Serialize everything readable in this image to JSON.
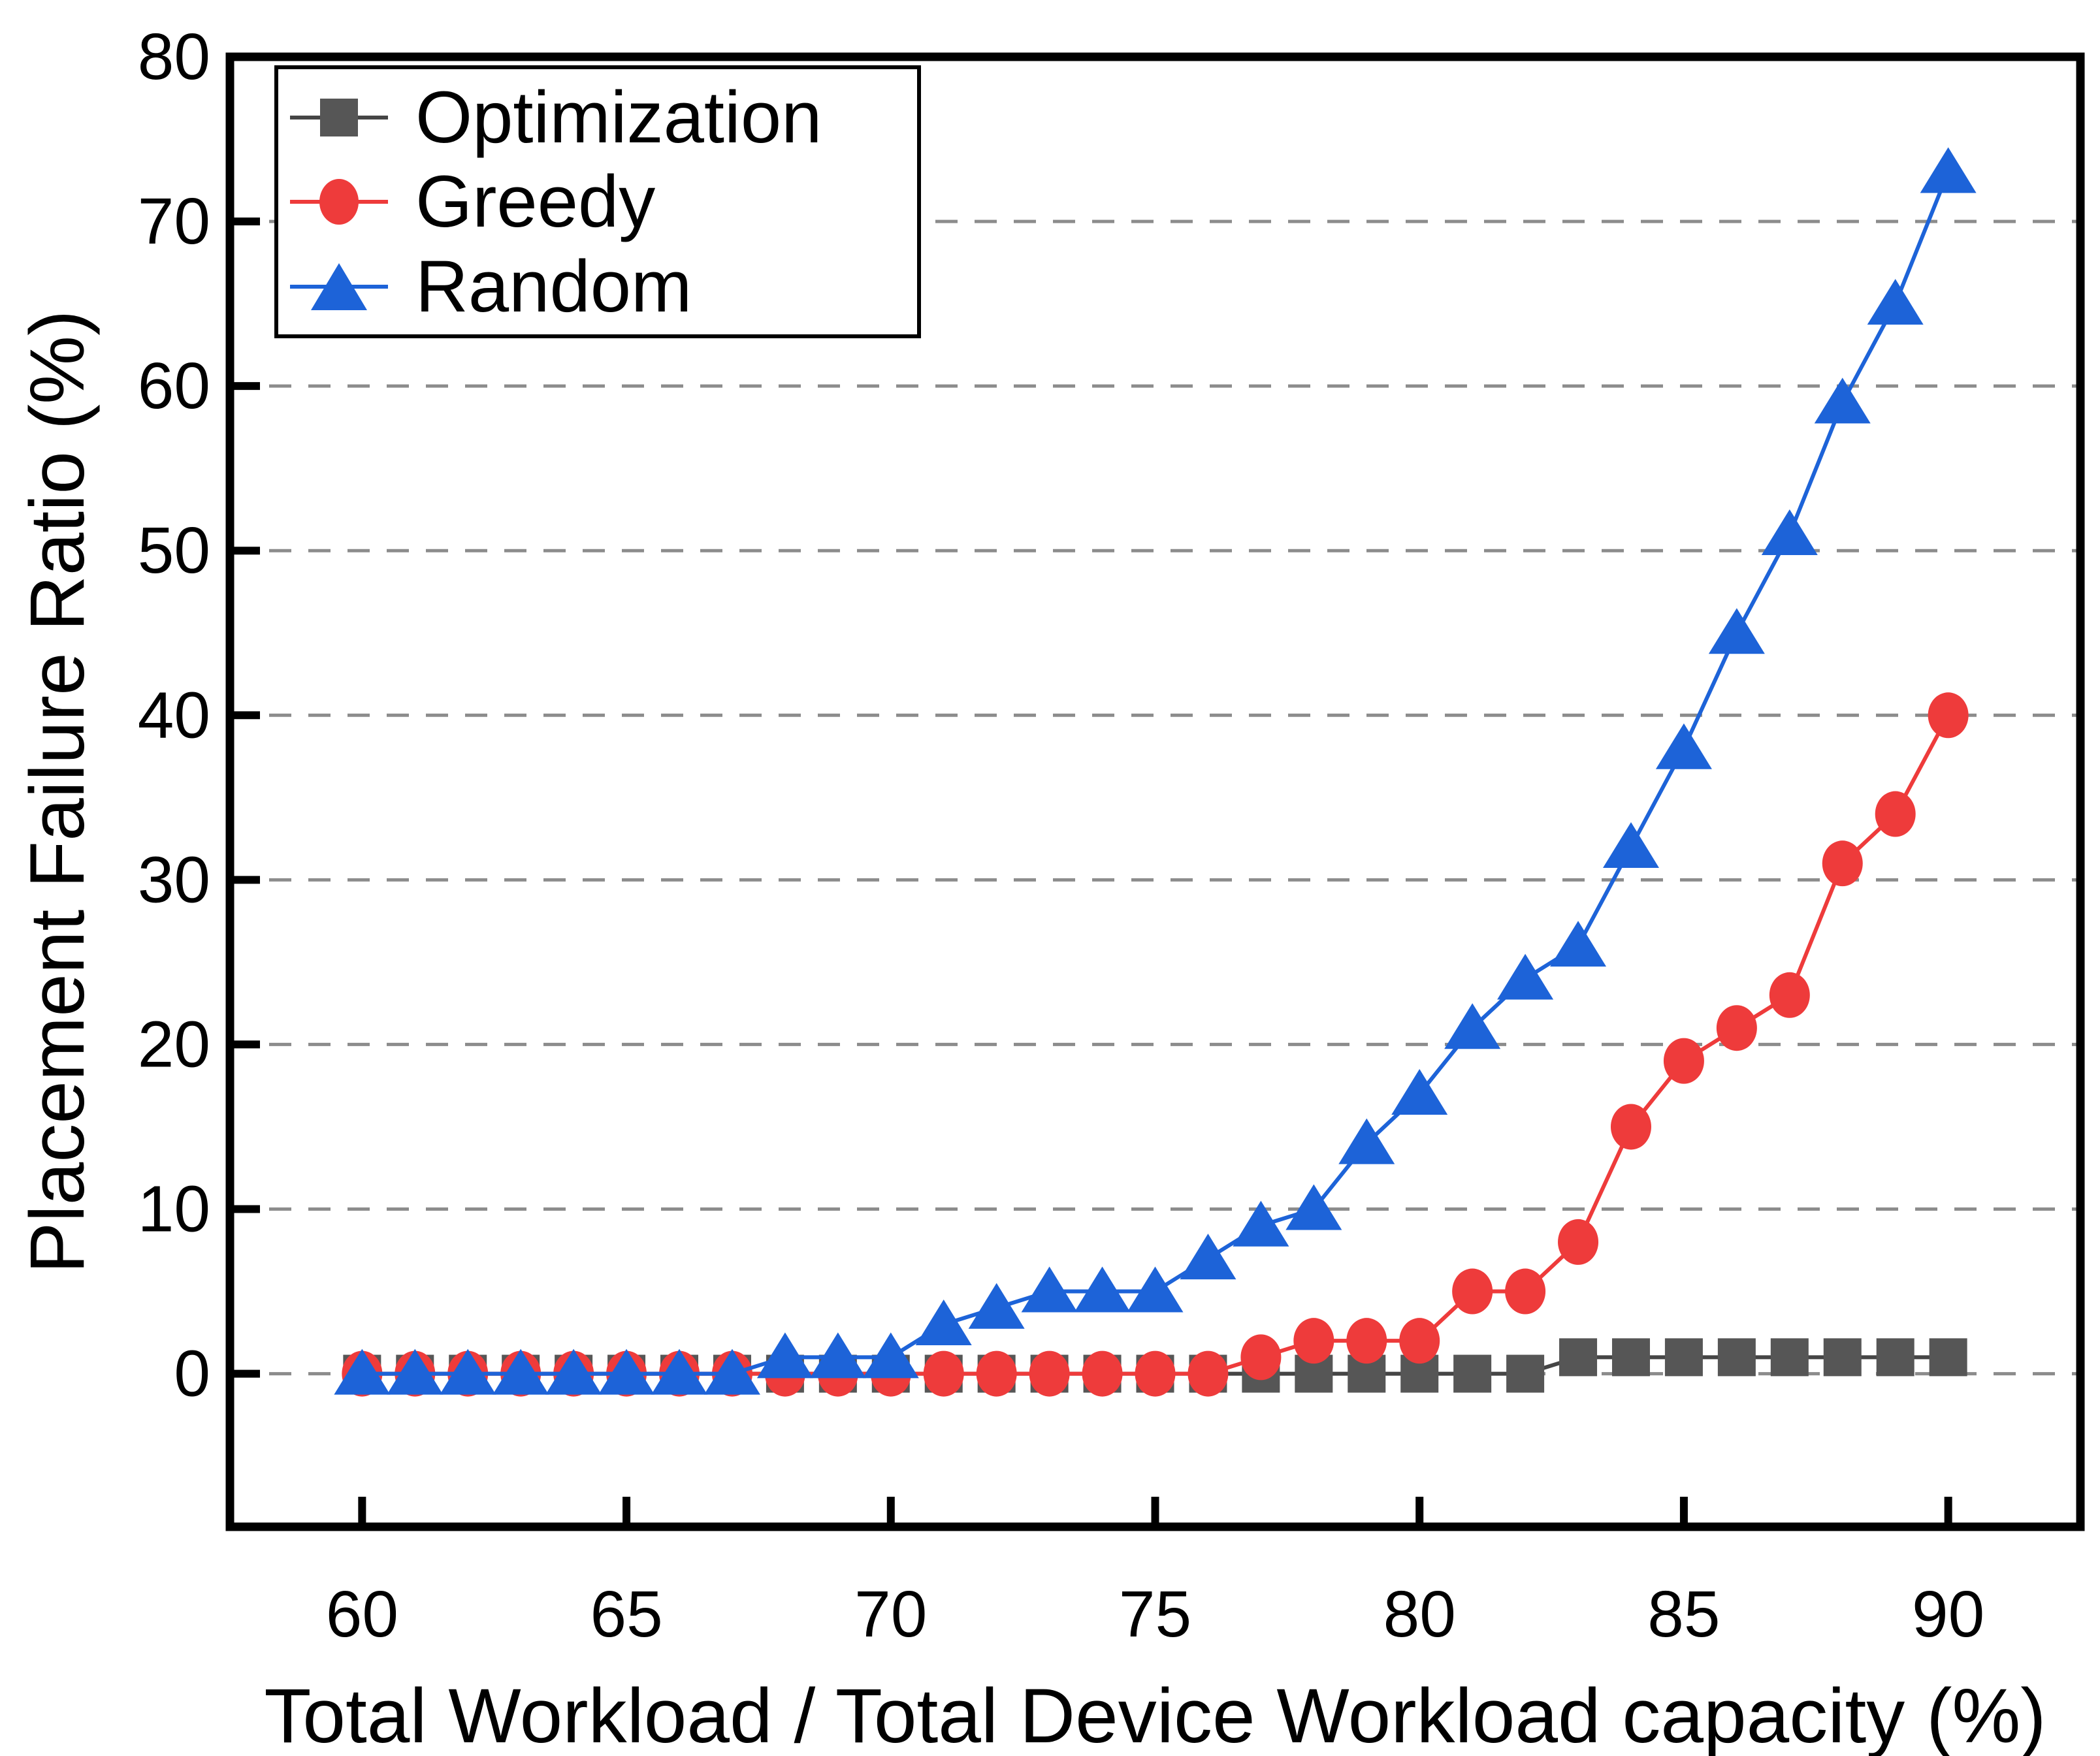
{
  "chart_data": {
    "type": "line",
    "title": "",
    "xlabel": "Total Workload / Total Device Workload capacity (%)",
    "ylabel": "Placement Failure Ratio (%)",
    "x": [
      60,
      61,
      62,
      63,
      64,
      65,
      66,
      67,
      68,
      69,
      70,
      71,
      72,
      73,
      74,
      75,
      76,
      77,
      78,
      79,
      80,
      81,
      82,
      83,
      84,
      85,
      86,
      87,
      88,
      89,
      90
    ],
    "x_ticks": [
      60,
      65,
      70,
      75,
      80,
      85,
      90
    ],
    "y_ticks": [
      0,
      10,
      20,
      30,
      40,
      50,
      60,
      70,
      80
    ],
    "xlim": [
      57.5,
      92.5
    ],
    "ylim": [
      -9.3,
      80
    ],
    "grid": "horizontal-dashed",
    "grid_color": "#8c8c8c",
    "legend_position": "top-left",
    "series": [
      {
        "name": "Optimization",
        "marker": "square",
        "color": "#565656",
        "line_color": "#454545",
        "values": [
          0,
          0,
          0,
          0,
          0,
          0,
          0,
          0,
          0,
          0,
          0,
          0,
          0,
          0,
          0,
          0,
          0,
          0,
          0,
          0,
          0,
          0,
          0,
          1,
          1,
          1,
          1,
          1,
          1,
          1,
          1
        ]
      },
      {
        "name": "Greedy",
        "marker": "circle",
        "color": "#ee3b3b",
        "line_color": "#ee3b3b",
        "values": [
          0,
          0,
          0,
          0,
          0,
          0,
          0,
          0,
          0,
          0,
          0,
          0,
          0,
          0,
          0,
          0,
          0,
          1,
          2,
          2,
          2,
          5,
          5,
          8,
          15,
          19,
          21,
          23,
          31,
          34,
          40
        ]
      },
      {
        "name": "Random",
        "marker": "triangle",
        "color": "#1d63d8",
        "line_color": "#1d63d8",
        "values": [
          0,
          0,
          0,
          0,
          0,
          0,
          0,
          0,
          1,
          1,
          1,
          3,
          4,
          5,
          5,
          5,
          7,
          9,
          10,
          14,
          17,
          21,
          24,
          26,
          32,
          38,
          45,
          51,
          59,
          65,
          73
        ]
      }
    ]
  }
}
